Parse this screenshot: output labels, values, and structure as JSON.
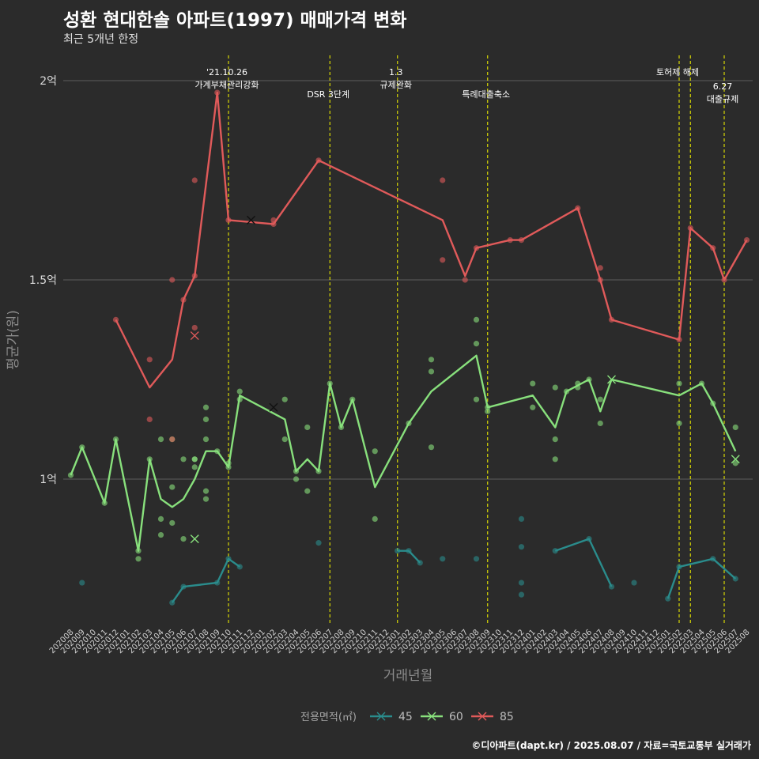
{
  "title": "성환 현대한솔 아파트(1997) 매매가격 변화",
  "subtitle": "최근 5개년 한정",
  "caption": "©디아파트(dapt.kr) / 2025.08.07 / 자료=국토교통부 실거래가",
  "colors": {
    "background": "#2b2b2b",
    "gridline": "#5e5e5e",
    "event_line": "#e6e600",
    "s45": "#2a8c8c",
    "s60": "#88e07c",
    "s85": "#e05a5a"
  },
  "chart_data": {
    "type": "line",
    "xlabel": "거래년월",
    "ylabel": "평균가(원)",
    "categories": [
      "202008",
      "202009",
      "202010",
      "202011",
      "202012",
      "202101",
      "202102",
      "202103",
      "202104",
      "202105",
      "202106",
      "202107",
      "202108",
      "202109",
      "202110",
      "202111",
      "202112",
      "202201",
      "202202",
      "202203",
      "202204",
      "202205",
      "202206",
      "202207",
      "202208",
      "202209",
      "202210",
      "202211",
      "202212",
      "202301",
      "202302",
      "202303",
      "202304",
      "202305",
      "202306",
      "202307",
      "202308",
      "202309",
      "202310",
      "202311",
      "202312",
      "202401",
      "202402",
      "202403",
      "202404",
      "202405",
      "202406",
      "202407",
      "202408",
      "202409",
      "202410",
      "202411",
      "202412",
      "202501",
      "202502",
      "202503",
      "202504",
      "202505",
      "202506",
      "202507",
      "202508"
    ],
    "yticks": [
      {
        "value": 1.0,
        "label": "1억"
      },
      {
        "value": 1.5,
        "label": "1.5억"
      },
      {
        "value": 2.0,
        "label": "2억"
      }
    ],
    "ylim": [
      0.63,
      2.07
    ],
    "unit": "억",
    "grid": true,
    "legend": {
      "title": "전용면적(㎡)",
      "position": "bottom"
    },
    "series": [
      {
        "name": "45",
        "color": "#2a8c8c",
        "line": [
          [
            "202105",
            0.69
          ],
          [
            "202106",
            0.73
          ],
          [
            "202109",
            0.74
          ],
          [
            "202110",
            0.8
          ],
          [
            "202111",
            0.78
          ]
        ],
        "line_gaps": [
          [
            [
              "202301",
              0.82
            ],
            [
              "202302",
              0.82
            ],
            [
              "202303",
              0.79
            ]
          ],
          [
            [
              "202403",
              0.82
            ],
            [
              "202406",
              0.85
            ],
            [
              "202408",
              0.73
            ]
          ],
          [
            [
              "202501",
              0.7
            ],
            [
              "202502",
              0.78
            ],
            [
              "202505",
              0.8
            ],
            [
              "202507",
              0.75
            ]
          ]
        ],
        "points": [
          [
            "202009",
            0.74
          ],
          [
            "202105",
            0.69
          ],
          [
            "202106",
            0.73
          ],
          [
            "202109",
            0.74
          ],
          [
            "202110",
            0.8
          ],
          [
            "202111",
            0.78
          ],
          [
            "202206",
            0.84
          ],
          [
            "202301",
            0.82
          ],
          [
            "202302",
            0.82
          ],
          [
            "202303",
            0.79
          ],
          [
            "202305",
            0.8
          ],
          [
            "202308",
            0.8
          ],
          [
            "202312",
            0.9
          ],
          [
            "202312",
            0.83
          ],
          [
            "202312",
            0.74
          ],
          [
            "202312",
            0.71
          ],
          [
            "202403",
            0.82
          ],
          [
            "202406",
            0.85
          ],
          [
            "202408",
            0.73
          ],
          [
            "202410",
            0.74
          ],
          [
            "202501",
            0.7
          ],
          [
            "202502",
            0.78
          ],
          [
            "202505",
            0.8
          ],
          [
            "202507",
            0.75
          ]
        ],
        "crosses": []
      },
      {
        "name": "60",
        "color": "#88e07c",
        "line": [
          [
            "202008",
            1.01
          ],
          [
            "202009",
            1.08
          ],
          [
            "202011",
            0.94
          ],
          [
            "202012",
            1.1
          ],
          [
            "202102",
            0.82
          ],
          [
            "202103",
            1.05
          ],
          [
            "202104",
            0.95
          ],
          [
            "202105",
            0.93
          ],
          [
            "202106",
            0.95
          ],
          [
            "202107",
            1.0
          ],
          [
            "202108",
            1.07
          ],
          [
            "202109",
            1.07
          ],
          [
            "202110",
            1.03
          ],
          [
            "202111",
            1.21
          ],
          [
            "202203",
            1.15
          ],
          [
            "202204",
            1.02
          ],
          [
            "202205",
            1.05
          ],
          [
            "202206",
            1.02
          ],
          [
            "202207",
            1.24
          ],
          [
            "202208",
            1.13
          ],
          [
            "202209",
            1.2
          ],
          [
            "202211",
            0.98
          ],
          [
            "202302",
            1.14
          ],
          [
            "202304",
            1.22
          ],
          [
            "202308",
            1.31
          ],
          [
            "202309",
            1.18
          ],
          [
            "202401",
            1.21
          ],
          [
            "202403",
            1.13
          ],
          [
            "202404",
            1.22
          ],
          [
            "202406",
            1.25
          ],
          [
            "202407",
            1.17
          ],
          [
            "202408",
            1.25
          ],
          [
            "202502",
            1.21
          ],
          [
            "202504",
            1.24
          ],
          [
            "202505",
            1.19
          ],
          [
            "202507",
            1.07
          ]
        ],
        "points": [
          [
            "202008",
            1.01
          ],
          [
            "202009",
            1.08
          ],
          [
            "202011",
            0.94
          ],
          [
            "202012",
            1.1
          ],
          [
            "202102",
            0.8
          ],
          [
            "202102",
            0.82
          ],
          [
            "202103",
            1.05
          ],
          [
            "202104",
            1.1
          ],
          [
            "202104",
            0.9
          ],
          [
            "202104",
            0.86
          ],
          [
            "202105",
            1.1
          ],
          [
            "202105",
            0.98
          ],
          [
            "202105",
            0.89
          ],
          [
            "202106",
            1.05
          ],
          [
            "202106",
            0.85
          ],
          [
            "202107",
            1.05
          ],
          [
            "202107",
            1.03
          ],
          [
            "202107",
            1.05
          ],
          [
            "202108",
            1.18
          ],
          [
            "202108",
            1.15
          ],
          [
            "202108",
            1.1
          ],
          [
            "202108",
            0.97
          ],
          [
            "202108",
            0.95
          ],
          [
            "202109",
            1.07
          ],
          [
            "202110",
            1.03
          ],
          [
            "202110",
            1.04
          ],
          [
            "202111",
            1.22
          ],
          [
            "202111",
            1.2
          ],
          [
            "202203",
            1.2
          ],
          [
            "202203",
            1.1
          ],
          [
            "202204",
            1.0
          ],
          [
            "202204",
            1.02
          ],
          [
            "202205",
            1.13
          ],
          [
            "202205",
            0.97
          ],
          [
            "202206",
            1.02
          ],
          [
            "202207",
            1.24
          ],
          [
            "202208",
            1.13
          ],
          [
            "202209",
            1.2
          ],
          [
            "202211",
            1.07
          ],
          [
            "202211",
            0.9
          ],
          [
            "202302",
            1.14
          ],
          [
            "202304",
            1.3
          ],
          [
            "202304",
            1.27
          ],
          [
            "202304",
            1.08
          ],
          [
            "202308",
            1.4
          ],
          [
            "202308",
            1.34
          ],
          [
            "202308",
            1.2
          ],
          [
            "202309",
            1.18
          ],
          [
            "202309",
            1.17
          ],
          [
            "202401",
            1.24
          ],
          [
            "202401",
            1.18
          ],
          [
            "202403",
            1.23
          ],
          [
            "202403",
            1.1
          ],
          [
            "202403",
            1.05
          ],
          [
            "202404",
            1.22
          ],
          [
            "202405",
            1.24
          ],
          [
            "202405",
            1.23
          ],
          [
            "202406",
            1.25
          ],
          [
            "202407",
            1.2
          ],
          [
            "202407",
            1.14
          ],
          [
            "202502",
            1.24
          ],
          [
            "202502",
            1.14
          ],
          [
            "202504",
            1.24
          ],
          [
            "202505",
            1.19
          ],
          [
            "202507",
            1.13
          ],
          [
            "202507",
            1.04
          ]
        ],
        "crosses": [
          [
            "202107",
            0.85
          ],
          [
            "202408",
            1.25
          ],
          [
            "202507",
            1.05
          ]
        ]
      },
      {
        "name": "85",
        "color": "#e05a5a",
        "line": [
          [
            "202012",
            1.4
          ],
          [
            "202103",
            1.23
          ],
          [
            "202105",
            1.3
          ],
          [
            "202106",
            1.45
          ],
          [
            "202107",
            1.51
          ],
          [
            "202109",
            1.97
          ],
          [
            "202110",
            1.65
          ],
          [
            "202202",
            1.64
          ],
          [
            "202206",
            1.8
          ],
          [
            "202305",
            1.65
          ],
          [
            "202307",
            1.51
          ],
          [
            "202308",
            1.58
          ],
          [
            "202311",
            1.6
          ],
          [
            "202312",
            1.6
          ],
          [
            "202405",
            1.68
          ],
          [
            "202407",
            1.5
          ],
          [
            "202408",
            1.4
          ],
          [
            "202502",
            1.35
          ],
          [
            "202503",
            1.63
          ],
          [
            "202505",
            1.58
          ],
          [
            "202506",
            1.5
          ],
          [
            "202508",
            1.6
          ]
        ],
        "points": [
          [
            "202012",
            1.4
          ],
          [
            "202103",
            1.3
          ],
          [
            "202103",
            1.15
          ],
          [
            "202105",
            1.5
          ],
          [
            "202105",
            1.1
          ],
          [
            "202106",
            1.45
          ],
          [
            "202107",
            1.75
          ],
          [
            "202107",
            1.38
          ],
          [
            "202107",
            1.51
          ],
          [
            "202109",
            1.97
          ],
          [
            "202110",
            1.65
          ],
          [
            "202202",
            1.65
          ],
          [
            "202202",
            1.64
          ],
          [
            "202206",
            1.8
          ],
          [
            "202305",
            1.75
          ],
          [
            "202305",
            1.55
          ],
          [
            "202307",
            1.5
          ],
          [
            "202308",
            1.58
          ],
          [
            "202311",
            1.6
          ],
          [
            "202312",
            1.6
          ],
          [
            "202405",
            1.68
          ],
          [
            "202407",
            1.53
          ],
          [
            "202407",
            1.5
          ],
          [
            "202408",
            1.4
          ],
          [
            "202502",
            1.35
          ],
          [
            "202503",
            1.63
          ],
          [
            "202505",
            1.58
          ],
          [
            "202506",
            1.5
          ],
          [
            "202508",
            1.6
          ]
        ],
        "crosses": [
          [
            "202107",
            1.36
          ]
        ]
      }
    ],
    "black_crosses": [
      [
        "202112",
        1.65
      ],
      [
        "202202",
        1.18
      ]
    ],
    "events": [
      {
        "x": "202110",
        "lines": [
          "'21.10.26",
          "가계부채관리강화"
        ],
        "row": 1
      },
      {
        "x": "202207",
        "lines": [
          "DSR 3단계"
        ],
        "row": 2
      },
      {
        "x": "202301",
        "lines": [
          "1.3",
          "규제완화"
        ],
        "row": 1
      },
      {
        "x": "202309",
        "lines": [
          "특례대출축소"
        ],
        "row": 2
      },
      {
        "x": "202502",
        "lines": [
          "토허제 해제"
        ],
        "row": 1
      },
      {
        "x": "202503",
        "lines": [],
        "row": 1
      },
      {
        "x": "202506",
        "lines": [
          "6.27",
          "대출규제"
        ],
        "row": 2
      }
    ]
  }
}
